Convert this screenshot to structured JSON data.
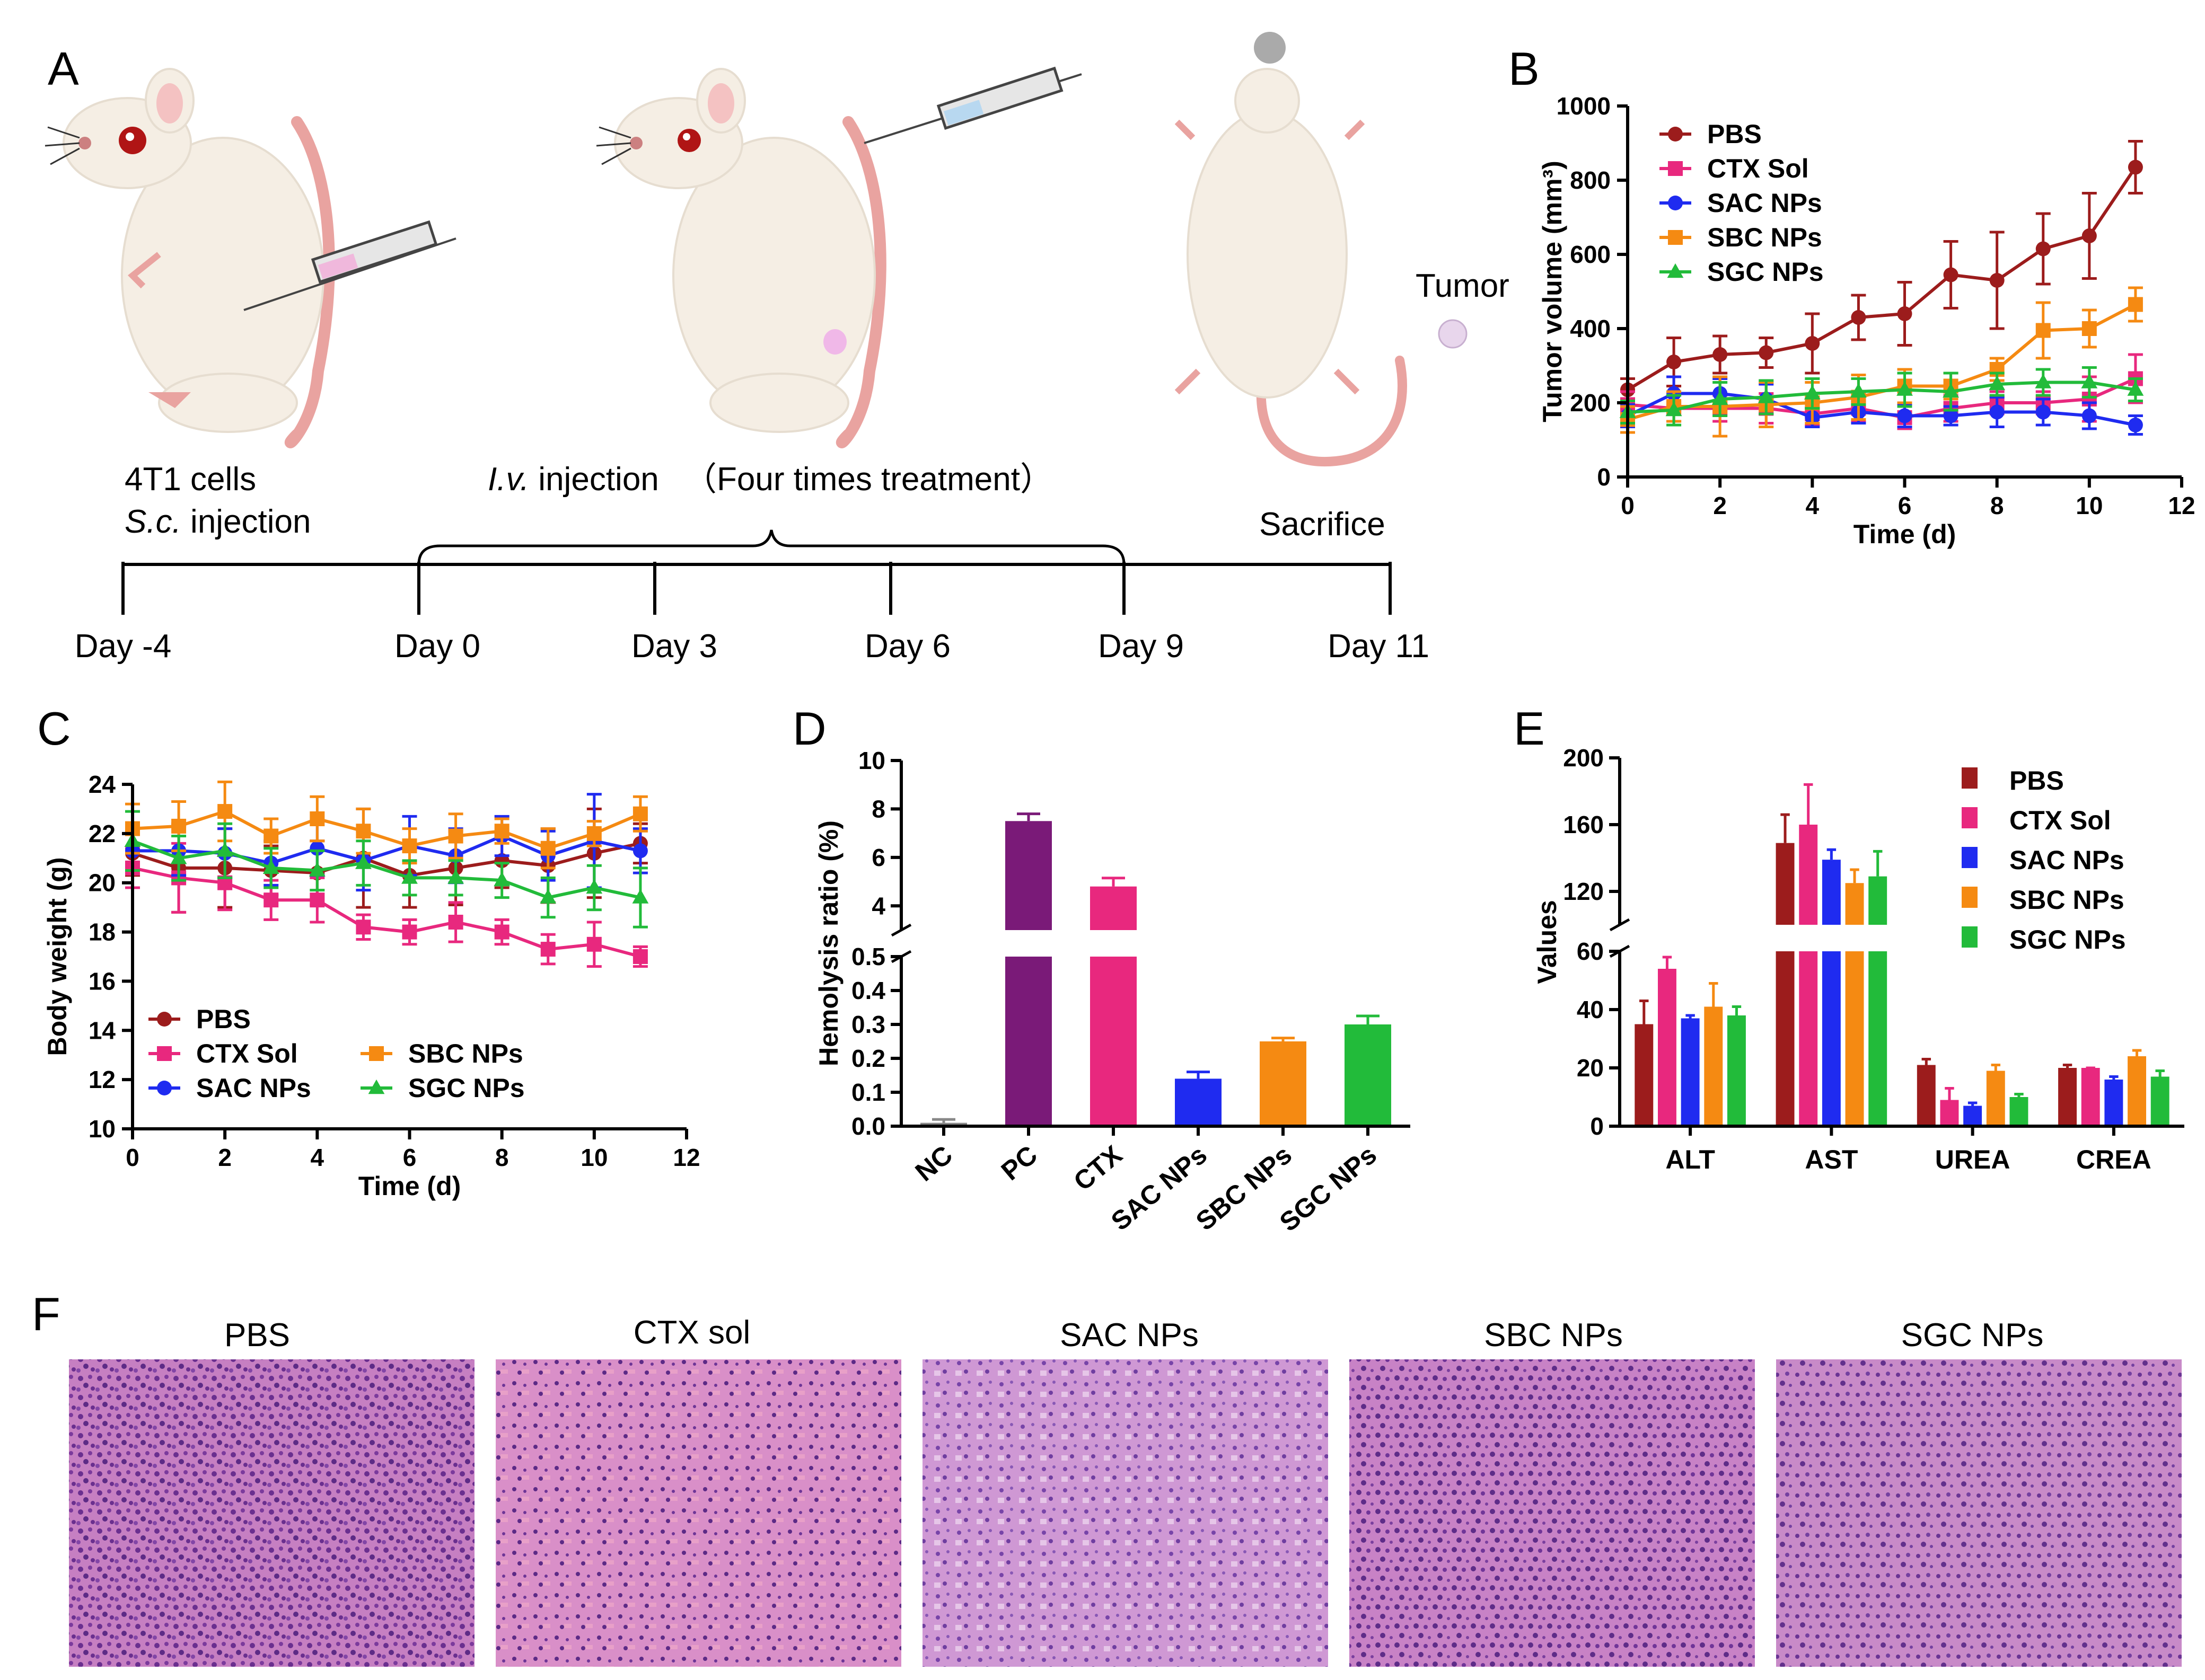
{
  "panel_labels": [
    "A",
    "B",
    "C",
    "D",
    "E",
    "F"
  ],
  "colors": {
    "PBS": "#9c1c1c",
    "CTX Sol": "#e8287e",
    "SAC NPs": "#1f2bf0",
    "SBC NPs": "#f58a12",
    "SGC NPs": "#22bb3a",
    "PC": "#7a1a78",
    "NC": "#888888",
    "mouse_body": "#f5eee4",
    "mouse_tail": "#e9a3a0",
    "he_stain": "#c77fc0"
  },
  "schematic": {
    "timeline_left_text": [
      "4T1 cells",
      "S.c. injection"
    ],
    "iv_text_italic": "I.v.",
    "iv_text": " injection",
    "treatment_text": "（Four times treatment）",
    "tumor_label": "Tumor",
    "sacrifice_label": "Sacrifice",
    "days": [
      "Day -4",
      "Day 0",
      "Day 3",
      "Day 6",
      "Day 9",
      "Day 11"
    ]
  },
  "chart_data": [
    {
      "id": "B",
      "type": "line",
      "xlabel": "Time (d)",
      "ylabel": "Tumor volume (mm³)",
      "xlim": [
        0,
        12
      ],
      "ylim": [
        0,
        1000
      ],
      "xticks": [
        0,
        2,
        4,
        6,
        8,
        10,
        12
      ],
      "yticks": [
        0,
        200,
        400,
        600,
        800,
        1000
      ],
      "legend_position": "top-left",
      "x": [
        0,
        1,
        2,
        3,
        4,
        5,
        6,
        7,
        8,
        9,
        10,
        11
      ],
      "series": [
        {
          "name": "PBS",
          "marker": "circle",
          "values": [
            235,
            310,
            330,
            335,
            360,
            430,
            440,
            545,
            530,
            615,
            650,
            835
          ],
          "errors": [
            30,
            65,
            50,
            40,
            80,
            60,
            85,
            90,
            130,
            95,
            115,
            70
          ]
        },
        {
          "name": "CTX Sol",
          "marker": "square",
          "values": [
            195,
            185,
            185,
            185,
            170,
            185,
            160,
            185,
            200,
            200,
            210,
            265
          ],
          "errors": [
            35,
            35,
            35,
            40,
            30,
            35,
            30,
            35,
            30,
            30,
            60,
            65
          ]
        },
        {
          "name": "SAC NPs",
          "marker": "circle",
          "values": [
            165,
            225,
            225,
            210,
            160,
            175,
            165,
            165,
            175,
            175,
            165,
            140
          ],
          "errors": [
            30,
            45,
            40,
            40,
            25,
            30,
            30,
            25,
            40,
            35,
            35,
            25
          ]
        },
        {
          "name": "SBC NPs",
          "marker": "square",
          "values": [
            155,
            190,
            190,
            195,
            200,
            215,
            245,
            245,
            290,
            395,
            400,
            465
          ],
          "errors": [
            35,
            40,
            80,
            60,
            55,
            60,
            45,
            35,
            30,
            75,
            50,
            45
          ]
        },
        {
          "name": "SGC NPs",
          "marker": "triangle",
          "values": [
            175,
            180,
            210,
            215,
            225,
            230,
            235,
            230,
            250,
            255,
            255,
            235
          ],
          "errors": [
            30,
            40,
            45,
            45,
            40,
            35,
            45,
            50,
            30,
            35,
            40,
            30
          ]
        }
      ]
    },
    {
      "id": "C",
      "type": "line",
      "xlabel": "Time (d)",
      "ylabel": "Body weight (g)",
      "xlim": [
        0,
        12
      ],
      "ylim": [
        10,
        24
      ],
      "xticks": [
        0,
        2,
        4,
        6,
        8,
        10,
        12
      ],
      "yticks": [
        10,
        12,
        14,
        16,
        18,
        20,
        22,
        24
      ],
      "legend_position": "bottom-left",
      "x": [
        0,
        1,
        2,
        3,
        4,
        5,
        6,
        7,
        8,
        9,
        10,
        11
      ],
      "series": [
        {
          "name": "PBS",
          "marker": "circle",
          "values": [
            21.2,
            20.6,
            20.6,
            20.5,
            20.4,
            21.0,
            20.3,
            20.6,
            20.9,
            20.7,
            21.2,
            21.6
          ],
          "errors": [
            0.9,
            1.8,
            1.6,
            1.0,
            1.3,
            2.0,
            1.3,
            1.5,
            1.1,
            1.5,
            1.8,
            0.8
          ]
        },
        {
          "name": "CTX Sol",
          "marker": "square",
          "values": [
            20.6,
            20.2,
            20.0,
            19.3,
            19.3,
            18.2,
            18.0,
            18.4,
            18.0,
            17.3,
            17.5,
            17.0
          ],
          "errors": [
            0.8,
            1.4,
            1.1,
            0.8,
            0.9,
            0.5,
            0.5,
            0.8,
            0.5,
            0.6,
            0.9,
            0.4
          ]
        },
        {
          "name": "SAC NPs",
          "marker": "circle",
          "values": [
            21.3,
            21.3,
            21.2,
            20.8,
            21.4,
            20.9,
            21.5,
            21.1,
            21.9,
            21.1,
            21.7,
            21.3
          ],
          "errors": [
            0.8,
            1.0,
            1.0,
            0.9,
            1.1,
            1.2,
            1.2,
            1.1,
            0.8,
            1.0,
            1.9,
            0.9
          ]
        },
        {
          "name": "SBC NPs",
          "marker": "square",
          "values": [
            22.2,
            22.3,
            22.9,
            21.9,
            22.6,
            22.1,
            21.5,
            21.9,
            22.1,
            21.4,
            22.0,
            22.8
          ],
          "errors": [
            1.0,
            1.0,
            1.2,
            0.7,
            0.9,
            0.9,
            0.7,
            0.9,
            0.5,
            0.8,
            0.5,
            0.7
          ]
        },
        {
          "name": "SGC NPs",
          "marker": "triangle",
          "values": [
            21.7,
            21.0,
            21.3,
            20.6,
            20.5,
            20.8,
            20.2,
            20.2,
            20.1,
            19.4,
            19.8,
            19.4
          ],
          "errors": [
            1.2,
            0.9,
            1.1,
            0.8,
            0.8,
            0.9,
            0.7,
            0.7,
            0.7,
            0.8,
            0.9,
            1.2
          ]
        }
      ]
    },
    {
      "id": "D",
      "type": "bar",
      "ylabel": "Hemolysis ratio (%)",
      "categories": [
        "NC",
        "PC",
        "CTX",
        "SAC NPs",
        "SBC NPs",
        "SGC NPs"
      ],
      "values": [
        0.01,
        7.5,
        4.8,
        0.14,
        0.25,
        0.3
      ],
      "errors": [
        0.01,
        0.3,
        0.35,
        0.02,
        0.01,
        0.025
      ],
      "axis_break": {
        "lower_range": [
          0,
          0.5
        ],
        "upper_range": [
          3,
          10
        ]
      },
      "yticks_lower": [
        0.0,
        0.1,
        0.2,
        0.3,
        0.4,
        0.5
      ],
      "yticks_upper": [
        4,
        6,
        8,
        10
      ],
      "grid": false
    },
    {
      "id": "E",
      "type": "bar",
      "ylabel": "Values",
      "categories": [
        "ALT",
        "AST",
        "UREA",
        "CREA"
      ],
      "axis_break": {
        "lower_range": [
          0,
          60
        ],
        "upper_range": [
          100,
          200
        ]
      },
      "yticks_lower": [
        0,
        20,
        40,
        60
      ],
      "yticks_upper": [
        120,
        160,
        200
      ],
      "legend_position": "top-right",
      "series": [
        {
          "name": "PBS",
          "values": [
            35,
            149,
            21,
            20
          ],
          "errors": [
            8,
            17,
            2,
            1
          ]
        },
        {
          "name": "CTX Sol",
          "values": [
            54,
            160,
            9,
            20
          ],
          "errors": [
            4,
            24,
            4,
            0
          ]
        },
        {
          "name": "SAC NPs",
          "values": [
            37,
            139,
            7,
            16
          ],
          "errors": [
            1,
            6,
            1,
            1
          ]
        },
        {
          "name": "SBC NPs",
          "values": [
            41,
            125,
            19,
            24
          ],
          "errors": [
            8,
            8,
            2,
            2
          ]
        },
        {
          "name": "SGC NPs",
          "values": [
            38,
            129,
            10,
            17
          ],
          "errors": [
            3,
            15,
            1,
            2
          ]
        }
      ]
    }
  ],
  "histology": {
    "titles": [
      "PBS",
      "CTX sol",
      "SAC NPs",
      "SBC NPs",
      "SGC NPs"
    ]
  }
}
